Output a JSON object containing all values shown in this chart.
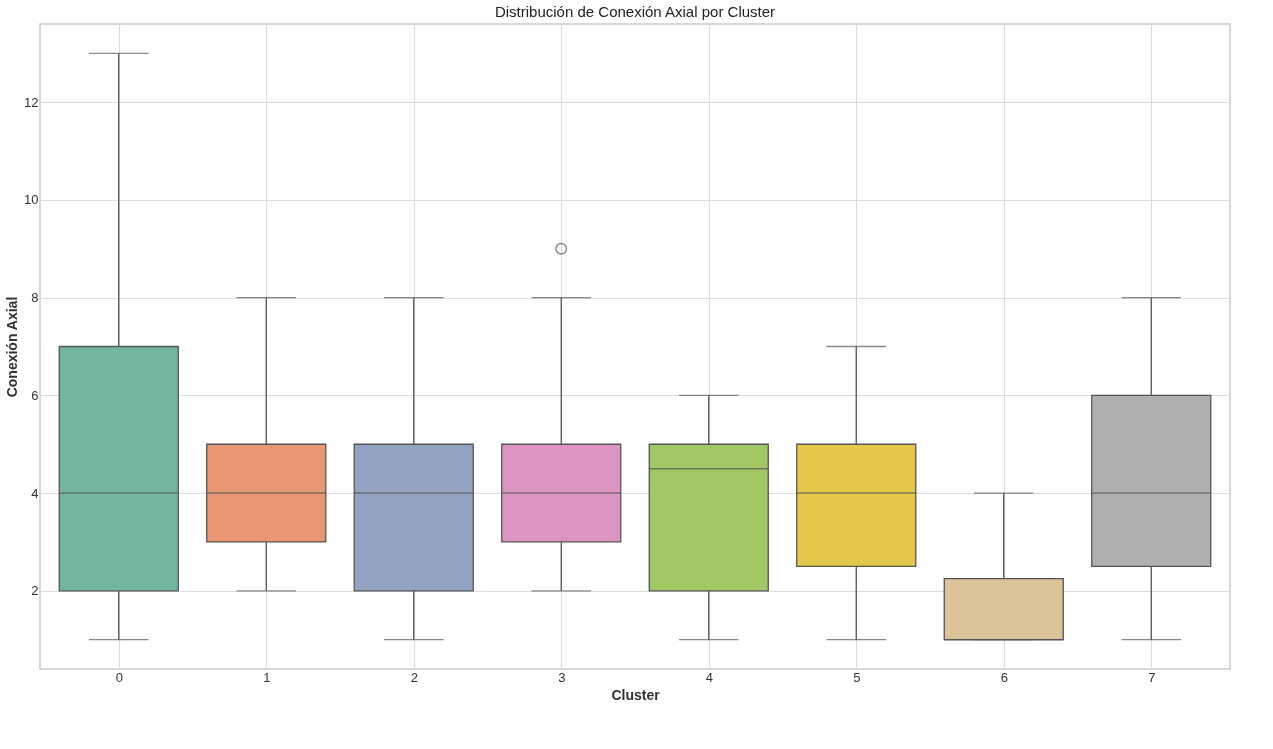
{
  "chart_data": {
    "type": "box",
    "title": "Distribución de Conexión Axial por Cluster",
    "xlabel": "Cluster",
    "ylabel": "Conexión Axial",
    "categories": [
      "0",
      "1",
      "2",
      "3",
      "4",
      "5",
      "6",
      "7"
    ],
    "boxes": [
      {
        "low": 1,
        "q1": 2,
        "median": 4,
        "q3": 7,
        "high": 13
      },
      {
        "low": 2,
        "q1": 3,
        "median": 4,
        "q3": 5,
        "high": 8
      },
      {
        "low": 1,
        "q1": 2,
        "median": 4,
        "q3": 5,
        "high": 8
      },
      {
        "low": 2,
        "q1": 3,
        "median": 4,
        "q3": 5,
        "high": 8,
        "outliers": [
          9
        ]
      },
      {
        "low": 1,
        "q1": 2,
        "median": 4.5,
        "q3": 5,
        "high": 6
      },
      {
        "low": 1,
        "q1": 2.5,
        "median": 4,
        "q3": 5,
        "high": 7
      },
      {
        "low": 1,
        "q1": 1,
        "median": 1,
        "q3": 2.25,
        "high": 4
      },
      {
        "low": 1,
        "q1": 2.5,
        "median": 4,
        "q3": 6,
        "high": 8
      }
    ],
    "colors": [
      "#72b6a1",
      "#e99675",
      "#95a3c3",
      "#dc94c1",
      "#a1c865",
      "#e5c84a",
      "#dbc39a",
      "#b0b0b0"
    ],
    "ylim": [
      0.4,
      13.6
    ],
    "yticks": [
      2,
      4,
      6,
      8,
      10,
      12
    ],
    "grid": true
  }
}
